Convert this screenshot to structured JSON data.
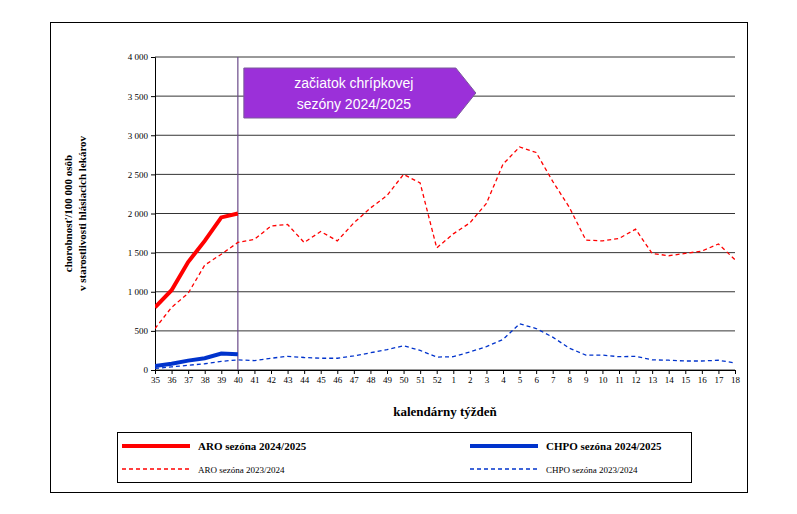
{
  "chart_data": {
    "type": "line",
    "xlabel": "kalendárny týždeň",
    "ylabel": [
      "chorobnosť/100 000 osôb",
      "v starostlivosti hlásiacich lekárov"
    ],
    "annotation": {
      "lines": [
        "začiatok chrípkovej",
        "sezóny 2024/2025"
      ],
      "x": "40"
    },
    "categories": [
      "35",
      "36",
      "37",
      "38",
      "39",
      "40",
      "41",
      "42",
      "43",
      "44",
      "45",
      "46",
      "47",
      "48",
      "49",
      "50",
      "51",
      "52",
      "1",
      "2",
      "3",
      "4",
      "5",
      "6",
      "7",
      "8",
      "9",
      "10",
      "11",
      "12",
      "13",
      "14",
      "15",
      "16",
      "17",
      "18"
    ],
    "series": [
      {
        "name": "ARO sezóna 2024/2025",
        "color": "#ff0000",
        "line_style": "solid",
        "values": [
          800,
          1020,
          1380,
          1650,
          1950,
          2000,
          null,
          null,
          null,
          null,
          null,
          null,
          null,
          null,
          null,
          null,
          null,
          null,
          null,
          null,
          null,
          null,
          null,
          null,
          null,
          null,
          null,
          null,
          null,
          null,
          null,
          null,
          null,
          null,
          null,
          null
        ]
      },
      {
        "name": "CHPO sezóna 2024/2025",
        "color": "#0033cc",
        "line_style": "solid",
        "values": [
          50,
          80,
          120,
          150,
          210,
          200,
          null,
          null,
          null,
          null,
          null,
          null,
          null,
          null,
          null,
          null,
          null,
          null,
          null,
          null,
          null,
          null,
          null,
          null,
          null,
          null,
          null,
          null,
          null,
          null,
          null,
          null,
          null,
          null,
          null,
          null
        ]
      },
      {
        "name": "ARO sezóna 2023/2024",
        "color": "#ff0000",
        "line_style": "dashed",
        "values": [
          530,
          800,
          980,
          1340,
          1480,
          1630,
          1670,
          1840,
          1860,
          1630,
          1770,
          1650,
          1880,
          2070,
          2230,
          2500,
          2390,
          1560,
          1740,
          1880,
          2130,
          2630,
          2850,
          2780,
          2410,
          2080,
          1660,
          1650,
          1680,
          1800,
          1490,
          1460,
          1490,
          1520,
          1610,
          1410
        ]
      },
      {
        "name": "CHPO sezóna 2023/2024",
        "color": "#0033cc",
        "line_style": "dashed",
        "values": [
          20,
          40,
          60,
          80,
          110,
          130,
          120,
          150,
          175,
          160,
          150,
          150,
          180,
          220,
          260,
          310,
          250,
          165,
          170,
          230,
          300,
          390,
          590,
          530,
          420,
          280,
          190,
          190,
          170,
          175,
          130,
          125,
          115,
          115,
          125,
          90
        ]
      }
    ],
    "ylim": [
      0,
      4000
    ],
    "yticks": [
      0,
      500,
      {
        "value": 1000,
        "label": "1 000"
      },
      {
        "value": 1500,
        "label": "1 500"
      },
      {
        "value": 2000,
        "label": "2 000"
      },
      {
        "value": 2500,
        "label": "2 500"
      },
      {
        "value": 3000,
        "label": "3 000"
      },
      {
        "value": 3500,
        "label": "3 500"
      },
      {
        "value": 4000,
        "label": "4 000"
      }
    ],
    "grid": true,
    "legend": "bottom"
  }
}
